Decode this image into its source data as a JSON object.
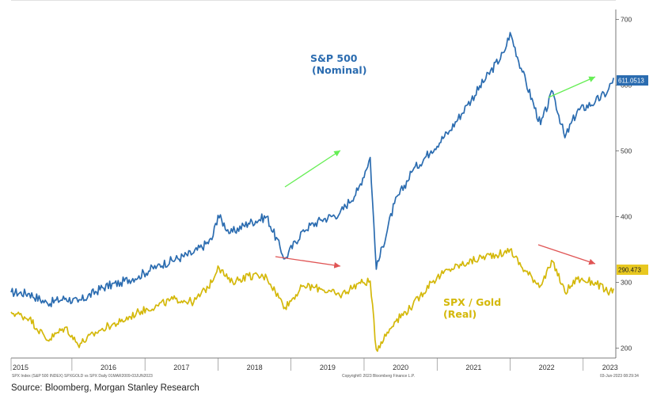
{
  "chart_data": {
    "type": "line",
    "x": [
      "2015-03",
      "2015-06",
      "2015-09",
      "2015-12",
      "2016-02",
      "2016-06",
      "2016-09",
      "2016-12",
      "2017-03",
      "2017-06",
      "2017-09",
      "2017-12",
      "2018-01",
      "2018-03",
      "2018-06",
      "2018-09",
      "2018-12",
      "2019-03",
      "2019-06",
      "2019-09",
      "2019-12",
      "2020-02",
      "2020-03",
      "2020-06",
      "2020-09",
      "2020-12",
      "2021-03",
      "2021-06",
      "2021-09",
      "2021-12",
      "2022-01",
      "2022-03",
      "2022-06",
      "2022-08",
      "2022-10",
      "2022-12",
      "2023-03",
      "2023-05",
      "2023-06"
    ],
    "series": [
      {
        "name": "S&P 500 (Nominal)",
        "color": "#2b6cb0",
        "values": [
          285,
          283,
          268,
          276,
          270,
          292,
          300,
          310,
          325,
          335,
          345,
          365,
          402,
          375,
          390,
          400,
          336,
          380,
          395,
          405,
          440,
          490,
          320,
          420,
          470,
          500,
          530,
          570,
          610,
          650,
          680,
          620,
          540,
          590,
          520,
          560,
          575,
          590,
          611.05
        ]
      },
      {
        "name": "SPX / Gold (Real)",
        "color": "#d4b80a",
        "values": [
          255,
          245,
          212,
          232,
          205,
          230,
          240,
          255,
          265,
          275,
          270,
          300,
          325,
          300,
          310,
          308,
          262,
          295,
          290,
          280,
          298,
          302,
          198,
          240,
          265,
          300,
          320,
          330,
          340,
          345,
          350,
          322,
          295,
          332,
          285,
          305,
          300,
          285,
          290.47
        ]
      }
    ],
    "ylim": [
      185,
      715
    ],
    "yticks": [
      200,
      300,
      400,
      500,
      600,
      700
    ],
    "xticks": [
      "2015",
      "2016",
      "2017",
      "2018",
      "2019",
      "2020",
      "2021",
      "2022",
      "2023"
    ],
    "annotations": [
      "S&P 500",
      "(Nominal)",
      "SPX / Gold",
      "(Real)"
    ],
    "last_value_labels": [
      "611.0513",
      "290.473"
    ],
    "legend": "none",
    "grid": false
  },
  "footer_meta": {
    "left_line1": "SPX Index (S&P 500 INDEX) SPXGOLD vs SPX  Daily 01MAR2009-03JUN2023",
    "copyright": "Copyright© 2023 Bloomberg Finance L.P.",
    "date": "03-Jun-2023 08:29:34"
  },
  "source": "Source: Bloomberg, Morgan Stanley Research",
  "colors": {
    "spx": "#2b6cb0",
    "gold": "#d4b80a",
    "up_arrow": "#66ee55",
    "down_arrow": "#e05555"
  }
}
